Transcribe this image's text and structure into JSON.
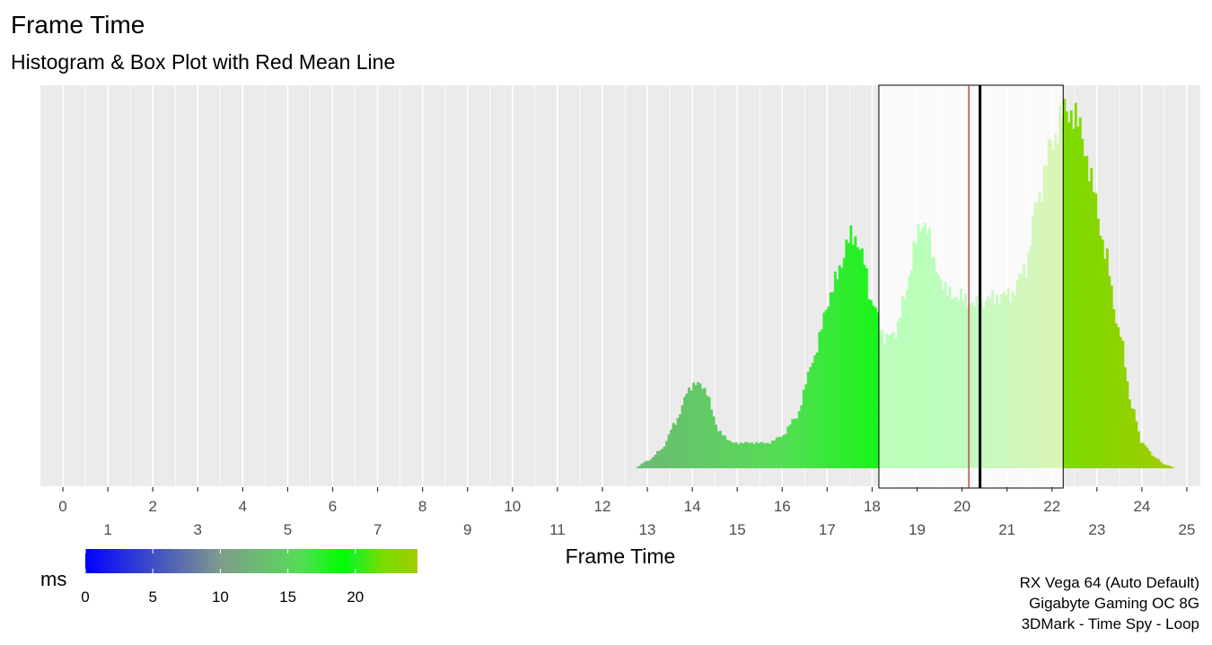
{
  "chart_data": {
    "type": "histogram",
    "title": "Frame Time",
    "subtitle": "Histogram & Box Plot with Red Mean Line",
    "xlabel": "Frame Time",
    "ylabel": "",
    "xlim": [
      -0.5,
      25.3
    ],
    "x_ticks_row1": [
      "0",
      "2",
      "4",
      "6",
      "8",
      "10",
      "12",
      "14",
      "16",
      "18",
      "20",
      "22",
      "24"
    ],
    "x_ticks_row2": [
      "1",
      "3",
      "5",
      "7",
      "9",
      "11",
      "13",
      "15",
      "17",
      "19",
      "21",
      "23",
      "25"
    ],
    "grid": true,
    "bin_width": 0.05,
    "density_profile": [
      [
        12.7,
        0.0
      ],
      [
        13.0,
        0.02
      ],
      [
        13.3,
        0.05
      ],
      [
        13.6,
        0.12
      ],
      [
        13.9,
        0.21
      ],
      [
        14.1,
        0.24
      ],
      [
        14.3,
        0.21
      ],
      [
        14.6,
        0.1
      ],
      [
        14.9,
        0.07
      ],
      [
        15.3,
        0.07
      ],
      [
        15.7,
        0.07
      ],
      [
        16.0,
        0.09
      ],
      [
        16.3,
        0.14
      ],
      [
        16.7,
        0.3
      ],
      [
        17.0,
        0.45
      ],
      [
        17.3,
        0.56
      ],
      [
        17.55,
        0.65
      ],
      [
        17.8,
        0.58
      ],
      [
        18.0,
        0.45
      ],
      [
        18.3,
        0.36
      ],
      [
        18.5,
        0.37
      ],
      [
        18.7,
        0.46
      ],
      [
        19.0,
        0.64
      ],
      [
        19.2,
        0.68
      ],
      [
        19.4,
        0.55
      ],
      [
        19.7,
        0.48
      ],
      [
        20.0,
        0.47
      ],
      [
        20.3,
        0.45
      ],
      [
        20.7,
        0.47
      ],
      [
        21.1,
        0.48
      ],
      [
        21.4,
        0.55
      ],
      [
        21.7,
        0.75
      ],
      [
        22.0,
        0.9
      ],
      [
        22.3,
        0.99
      ],
      [
        22.6,
        0.95
      ],
      [
        22.9,
        0.78
      ],
      [
        23.2,
        0.58
      ],
      [
        23.5,
        0.37
      ],
      [
        23.8,
        0.16
      ],
      [
        24.0,
        0.07
      ],
      [
        24.3,
        0.03
      ],
      [
        24.5,
        0.01
      ],
      [
        24.8,
        0.0
      ]
    ],
    "boxplot": {
      "q1": 18.15,
      "median": 20.4,
      "q3": 22.25
    },
    "mean": 20.15,
    "colors": {
      "panel_bg": "#EBEBEB",
      "grid": "#FFFFFF",
      "mean_line": "#B22222",
      "box": "#000000",
      "gradient_stops": [
        {
          "value": 0,
          "color": "#0000FF"
        },
        {
          "value": 10,
          "color": "#7F9C8C"
        },
        {
          "value": 16,
          "color": "#55DD55"
        },
        {
          "value": 19,
          "color": "#00FF00"
        },
        {
          "value": 20,
          "color": "#22EE22"
        },
        {
          "value": 22,
          "color": "#77DD00"
        },
        {
          "value": 24.6,
          "color": "#A0CC00"
        }
      ]
    },
    "legend": {
      "title": "ms",
      "labels": [
        "0",
        "5",
        "10",
        "15",
        "20"
      ],
      "label_values": [
        0,
        5,
        10,
        15,
        20
      ],
      "range": [
        0,
        24.6
      ],
      "placement": "bottom-left"
    },
    "caption": [
      "RX Vega 64 (Auto Default)",
      "Gigabyte Gaming OC 8G",
      "3DMark - Time Spy - Loop"
    ]
  }
}
